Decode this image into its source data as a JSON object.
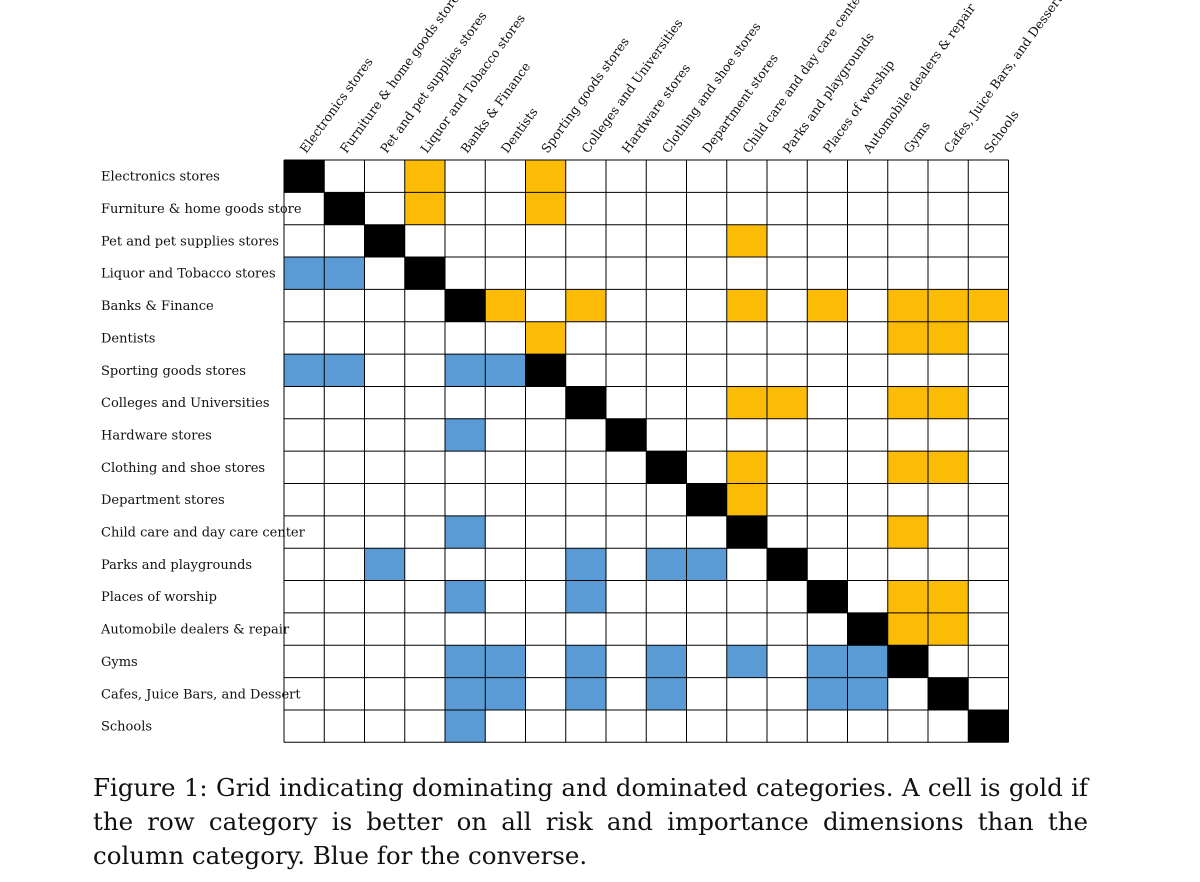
{
  "chart_data": {
    "type": "heatmap",
    "title": "",
    "xlabel": "",
    "ylabel": "",
    "categories": [
      "Electronics stores",
      "Furniture & home goods stores",
      "Pet and pet supplies stores",
      "Liquor and Tobacco stores",
      "Banks & Finance",
      "Dentists",
      "Sporting goods stores",
      "Colleges and Universities",
      "Hardware stores",
      "Clothing and shoe stores",
      "Department stores",
      "Child care and day care centers",
      "Parks and playgrounds",
      "Places of worship",
      "Automobile dealers & repair",
      "Gyms",
      "Cafes, Juice Bars, and Dessert",
      "Schools"
    ],
    "row_labels": [
      "Electronics stores",
      "Furniture & home goods store",
      "Pet and pet supplies stores",
      "Liquor and Tobacco stores",
      "Banks & Finance",
      "Dentists",
      "Sporting goods stores",
      "Colleges and Universities",
      "Hardware stores",
      "Clothing and shoe stores",
      "Department stores",
      "Child care and day care center",
      "Parks and playgrounds",
      "Places of worship",
      "Automobile dealers & repair",
      "Gyms",
      "Cafes, Juice Bars, and Dessert",
      "Schools"
    ],
    "legend": [
      {
        "code": "G",
        "meaning": "gold: row category dominates column category",
        "color": "#fcbc05"
      },
      {
        "code": "B",
        "meaning": "blue: column category dominates row category",
        "color": "#5b9bd5"
      },
      {
        "code": "D",
        "meaning": "diagonal",
        "color": "#000000"
      }
    ],
    "matrix": [
      "D..G..G...........",
      ".D.G..G...........",
      "..D........G......",
      "BB.D..............",
      "....DG.G...G.G.GGG",
      "......G........GG.",
      "BB..BBD...........",
      ".......D...GG..GG.",
      "....B...D.........",
      ".........D.G...GG.",
      "..........DG......",
      "....B......D...G..",
      "..B....B.BB.D.....",
      "....B..B.....D.GG.",
      "..............DGG.",
      "....BB.B.B.B.BBD..",
      "....BB.B.B...BB.D.",
      "....B............D"
    ]
  },
  "caption": {
    "text": "Figure 1: Grid indicating dominating and dominated categories. A cell is gold if the row category is better on all risk and importance dimensions than the column category. Blue for the converse."
  }
}
